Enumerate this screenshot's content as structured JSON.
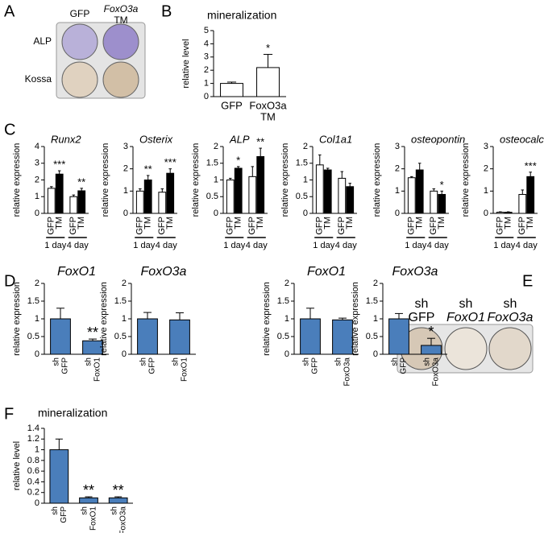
{
  "panel_a": {
    "label": "A",
    "columns": [
      [
        "GFP"
      ],
      [
        "FoxO3a",
        "TM"
      ]
    ],
    "rows": [
      "ALP",
      "Kossa"
    ]
  },
  "panel_e": {
    "label": "E",
    "columns": [
      [
        "sh",
        "GFP"
      ],
      [
        "sh",
        "FoxO1"
      ],
      [
        "sh",
        "FoxO3a"
      ]
    ]
  },
  "chart_data": [
    {
      "type": "bar",
      "label": "B",
      "title": "mineralization",
      "ylabel": "relative level",
      "categories": [
        [
          "GFP"
        ],
        [
          "FoxO3a",
          "TM"
        ]
      ],
      "values": [
        1.0,
        2.2
      ],
      "errors": [
        0.1,
        1.0
      ],
      "stars": [
        null,
        "*"
      ],
      "color": "#ffffff",
      "ylim": [
        0,
        5
      ],
      "yticks": [
        0,
        1,
        2,
        3,
        4,
        5
      ]
    },
    {
      "type": "bar",
      "label": "C",
      "title": "Runx2",
      "title_italic": true,
      "ylabel": "relative expression",
      "categories": [
        "1 day",
        "4 day"
      ],
      "series": [
        {
          "name": "GFP",
          "color": "#ffffff",
          "values": [
            1.5,
            1.0
          ],
          "errors": [
            0.1,
            0.1
          ],
          "stars": [
            null,
            null
          ]
        },
        {
          "name": "TM",
          "color": "#000000",
          "values": [
            2.35,
            1.35
          ],
          "errors": [
            0.2,
            0.15
          ],
          "stars": [
            "***",
            "**"
          ]
        }
      ],
      "ylim": [
        0,
        4
      ],
      "yticks": [
        0,
        1,
        2,
        3,
        4
      ]
    },
    {
      "type": "bar",
      "title": "Osterix",
      "title_italic": true,
      "ylabel": "relative expression",
      "categories": [
        "1 day",
        "4 day"
      ],
      "series": [
        {
          "name": "GFP",
          "color": "#ffffff",
          "values": [
            1.0,
            0.95
          ],
          "errors": [
            0.1,
            0.15
          ],
          "stars": [
            null,
            null
          ]
        },
        {
          "name": "TM",
          "color": "#000000",
          "values": [
            1.5,
            1.8
          ],
          "errors": [
            0.2,
            0.2
          ],
          "stars": [
            "**",
            "***"
          ]
        }
      ],
      "ylim": [
        0,
        3
      ],
      "yticks": [
        0,
        1,
        2,
        3
      ]
    },
    {
      "type": "bar",
      "title": "ALP",
      "title_italic": true,
      "ylabel": "relative expression",
      "categories": [
        "1 day",
        "4 day"
      ],
      "series": [
        {
          "name": "GFP",
          "color": "#ffffff",
          "values": [
            1.0,
            1.1
          ],
          "errors": [
            0.05,
            0.3
          ],
          "stars": [
            null,
            null
          ]
        },
        {
          "name": "TM",
          "color": "#000000",
          "values": [
            1.35,
            1.7
          ],
          "errors": [
            0.05,
            0.25
          ],
          "stars": [
            "*",
            "**"
          ]
        }
      ],
      "ylim": [
        0,
        2
      ],
      "yticks": [
        0,
        0.5,
        1,
        1.5,
        2
      ]
    },
    {
      "type": "bar",
      "title": "Col1a1",
      "title_italic": true,
      "ylabel": "relative expression",
      "categories": [
        "1 day",
        "4 day"
      ],
      "series": [
        {
          "name": "GFP",
          "color": "#ffffff",
          "values": [
            1.45,
            1.05
          ],
          "errors": [
            0.3,
            0.2
          ],
          "stars": [
            null,
            null
          ]
        },
        {
          "name": "TM",
          "color": "#000000",
          "values": [
            1.3,
            0.8
          ],
          "errors": [
            0.05,
            0.1
          ],
          "stars": [
            null,
            null
          ]
        }
      ],
      "ylim": [
        0,
        2
      ],
      "yticks": [
        0,
        0.5,
        1,
        1.5,
        2
      ]
    },
    {
      "type": "bar",
      "title": "osteopontin",
      "title_italic": true,
      "ylabel": "relative expression",
      "categories": [
        "1 day",
        "4 day"
      ],
      "series": [
        {
          "name": "GFP",
          "color": "#ffffff",
          "values": [
            1.6,
            1.0
          ],
          "errors": [
            0.05,
            0.1
          ],
          "stars": [
            null,
            null
          ]
        },
        {
          "name": "TM",
          "color": "#000000",
          "values": [
            1.95,
            0.85
          ],
          "errors": [
            0.3,
            0.15
          ],
          "stars": [
            null,
            "*"
          ]
        }
      ],
      "ylim": [
        0,
        3
      ],
      "yticks": [
        0,
        1,
        2,
        3
      ]
    },
    {
      "type": "bar",
      "title": "osteocalcin",
      "title_italic": true,
      "ylabel": "relative expression",
      "categories": [
        "1 day",
        "4 day"
      ],
      "series": [
        {
          "name": "GFP",
          "color": "#ffffff",
          "values": [
            0.05,
            0.85
          ],
          "errors": [
            0.02,
            0.2
          ],
          "stars": [
            null,
            null
          ]
        },
        {
          "name": "TM",
          "color": "#000000",
          "values": [
            0.05,
            1.65
          ],
          "errors": [
            0.02,
            0.2
          ],
          "stars": [
            null,
            "***"
          ]
        }
      ],
      "ylim": [
        0,
        3
      ],
      "yticks": [
        0,
        1,
        2,
        3
      ]
    },
    {
      "type": "bar",
      "label": "D",
      "title": "FoxO1",
      "title_italic": true,
      "ylabel": "relative expression",
      "categories": [
        [
          "sh",
          "GFP"
        ],
        [
          "sh",
          "FoxO1"
        ]
      ],
      "values": [
        1.0,
        0.38
      ],
      "errors": [
        0.3,
        0.05
      ],
      "stars": [
        null,
        "**"
      ],
      "color": "#4a7ebb",
      "ylim": [
        0,
        2
      ],
      "yticks": [
        0,
        0.5,
        1,
        1.5,
        2
      ]
    },
    {
      "type": "bar",
      "title": "FoxO3a",
      "title_italic": true,
      "ylabel": "relative expression",
      "categories": [
        [
          "sh",
          "GFP"
        ],
        [
          "sh",
          "FoxO1"
        ]
      ],
      "values": [
        1.0,
        0.97
      ],
      "errors": [
        0.18,
        0.2
      ],
      "stars": [
        null,
        null
      ],
      "color": "#4a7ebb",
      "ylim": [
        0,
        2
      ],
      "yticks": [
        0,
        0.5,
        1,
        1.5,
        2
      ]
    },
    {
      "type": "bar",
      "title": "FoxO1",
      "title_italic": true,
      "ylabel": "relative expression",
      "categories": [
        [
          "sh",
          "GFP"
        ],
        [
          "sh",
          "FoxO3a"
        ]
      ],
      "values": [
        1.0,
        0.97
      ],
      "errors": [
        0.3,
        0.05
      ],
      "stars": [
        null,
        null
      ],
      "color": "#4a7ebb",
      "ylim": [
        0,
        2
      ],
      "yticks": [
        0,
        0.5,
        1,
        1.5,
        2
      ]
    },
    {
      "type": "bar",
      "title": "FoxO3a",
      "title_italic": true,
      "ylabel": "relative expression",
      "categories": [
        [
          "sh",
          "GFP"
        ],
        [
          "sh",
          "FoxO3a"
        ]
      ],
      "values": [
        1.0,
        0.25
      ],
      "errors": [
        0.15,
        0.2
      ],
      "stars": [
        null,
        "*"
      ],
      "color": "#4a7ebb",
      "ylim": [
        0,
        2
      ],
      "yticks": [
        0,
        0.5,
        1,
        1.5,
        2
      ]
    },
    {
      "type": "bar",
      "label": "F",
      "title": "mineralization",
      "ylabel": "relative level",
      "categories": [
        [
          "sh",
          "GFP"
        ],
        [
          "sh",
          "FoxO1"
        ],
        [
          "sh",
          "FoxO3a"
        ]
      ],
      "values": [
        1.0,
        0.1,
        0.1
      ],
      "errors": [
        0.2,
        0.02,
        0.02
      ],
      "stars": [
        null,
        "**",
        "**"
      ],
      "color": "#4a7ebb",
      "ylim": [
        0,
        1.4
      ],
      "yticks": [
        0,
        0.2,
        0.4,
        0.6,
        0.8,
        1,
        1.2,
        1.4
      ]
    }
  ]
}
